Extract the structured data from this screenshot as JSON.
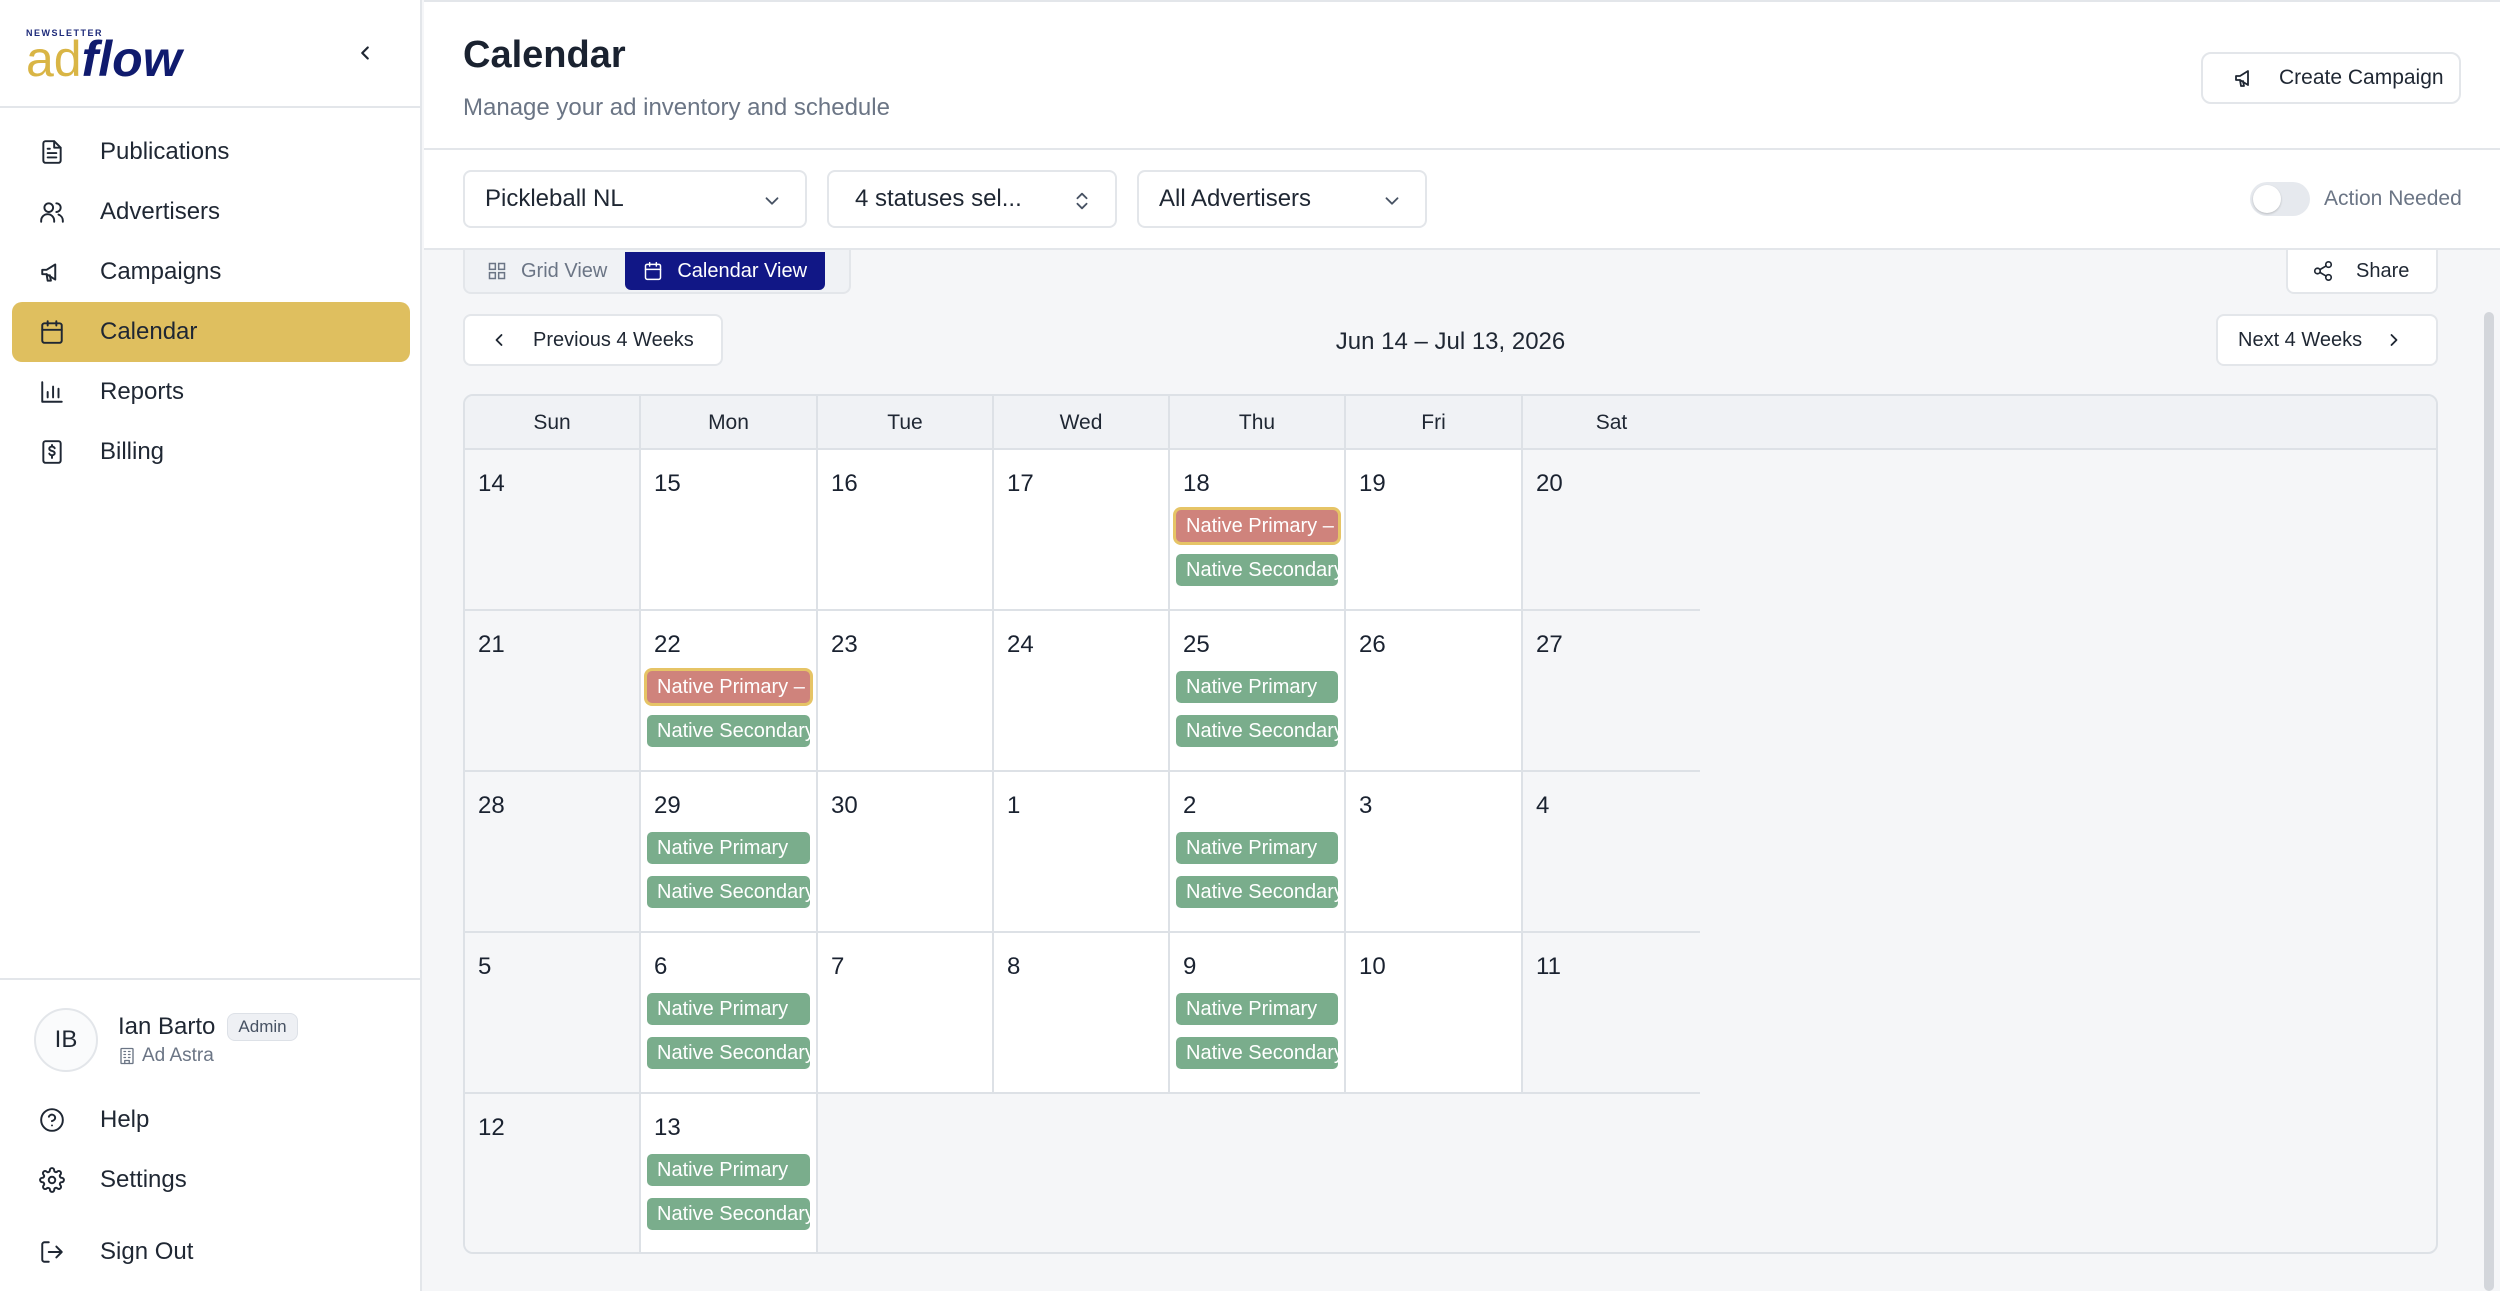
{
  "app": {
    "logo_small": "NEWSLETTER",
    "logo_ad": "ad",
    "logo_flow": "flow"
  },
  "sidebar": {
    "items": [
      {
        "label": "Publications",
        "icon": "document-icon"
      },
      {
        "label": "Advertisers",
        "icon": "users-icon"
      },
      {
        "label": "Campaigns",
        "icon": "megaphone-icon"
      },
      {
        "label": "Calendar",
        "icon": "calendar-icon",
        "active": true
      },
      {
        "label": "Reports",
        "icon": "bar-chart-icon"
      },
      {
        "label": "Billing",
        "icon": "receipt-icon"
      }
    ],
    "user": {
      "initials": "IB",
      "name": "Ian Barto",
      "role": "Admin",
      "org": "Ad Astra"
    },
    "bottom_items": [
      {
        "label": "Help",
        "icon": "help-icon"
      },
      {
        "label": "Settings",
        "icon": "gear-icon"
      },
      {
        "label": "Sign Out",
        "icon": "sign-out-icon"
      }
    ]
  },
  "header": {
    "title": "Calendar",
    "subtitle": "Manage your ad inventory and schedule",
    "create_label": "Create Campaign"
  },
  "filters": {
    "publication": "Pickleball NL",
    "statuses": "4 statuses sel...",
    "advertisers": "All Advertisers",
    "action_needed_label": "Action Needed",
    "action_needed_on": false
  },
  "view": {
    "grid_label": "Grid View",
    "calendar_label": "Calendar View",
    "share_label": "Share"
  },
  "calendar": {
    "prev_label": "Previous 4 Weeks",
    "next_label": "Next 4 Weeks",
    "range": "Jun 14 – Jul 13, 2026",
    "weekdays": [
      "Sun",
      "Mon",
      "Tue",
      "Wed",
      "Thu",
      "Fri",
      "Sat"
    ],
    "weeks": [
      [
        {
          "day": "14",
          "events": []
        },
        {
          "day": "15",
          "events": []
        },
        {
          "day": "16",
          "events": []
        },
        {
          "day": "17",
          "events": []
        },
        {
          "day": "18",
          "events": [
            {
              "label": "Native Primary – Pink's ...",
              "status": "red"
            },
            {
              "label": "Native Secondary",
              "status": "green"
            }
          ]
        },
        {
          "day": "19",
          "events": []
        },
        {
          "day": "20",
          "events": []
        }
      ],
      [
        {
          "day": "21",
          "events": []
        },
        {
          "day": "22",
          "events": [
            {
              "label": "Native Primary – Nivea",
              "status": "red"
            },
            {
              "label": "Native Secondary",
              "status": "green"
            }
          ]
        },
        {
          "day": "23",
          "events": []
        },
        {
          "day": "24",
          "events": []
        },
        {
          "day": "25",
          "events": [
            {
              "label": "Native Primary",
              "status": "green"
            },
            {
              "label": "Native Secondary",
              "status": "green"
            }
          ]
        },
        {
          "day": "26",
          "events": []
        },
        {
          "day": "27",
          "events": []
        }
      ],
      [
        {
          "day": "28",
          "events": []
        },
        {
          "day": "29",
          "events": [
            {
              "label": "Native Primary",
              "status": "green"
            },
            {
              "label": "Native Secondary",
              "status": "green"
            }
          ]
        },
        {
          "day": "30",
          "events": []
        },
        {
          "day": "1",
          "events": []
        },
        {
          "day": "2",
          "events": [
            {
              "label": "Native Primary",
              "status": "green"
            },
            {
              "label": "Native Secondary",
              "status": "green"
            }
          ]
        },
        {
          "day": "3",
          "events": []
        },
        {
          "day": "4",
          "events": []
        }
      ],
      [
        {
          "day": "5",
          "events": []
        },
        {
          "day": "6",
          "events": [
            {
              "label": "Native Primary",
              "status": "green"
            },
            {
              "label": "Native Secondary",
              "status": "green"
            }
          ]
        },
        {
          "day": "7",
          "events": []
        },
        {
          "day": "8",
          "events": []
        },
        {
          "day": "9",
          "events": [
            {
              "label": "Native Primary",
              "status": "green"
            },
            {
              "label": "Native Secondary",
              "status": "green"
            }
          ]
        },
        {
          "day": "10",
          "events": []
        },
        {
          "day": "11",
          "events": []
        }
      ],
      [
        {
          "day": "12",
          "events": []
        },
        {
          "day": "13",
          "events": [
            {
              "label": "Native Primary",
              "status": "green"
            },
            {
              "label": "Native Secondary",
              "status": "green"
            }
          ]
        }
      ]
    ]
  },
  "colors": {
    "accent": "#dfbf5f",
    "primary": "#111786",
    "event_green": "#7aad8c",
    "event_red": "#cf837c"
  }
}
